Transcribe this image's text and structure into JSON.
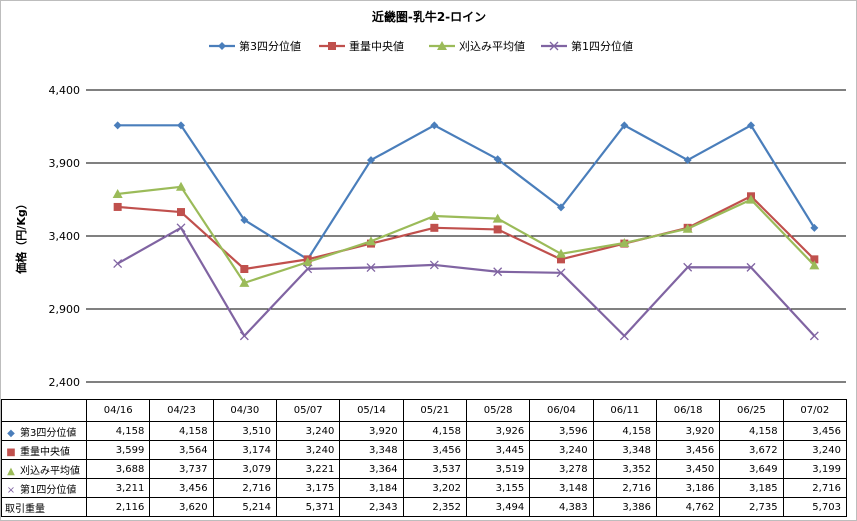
{
  "chart_data": {
    "type": "line",
    "title": "近畿圏-乳牛2-ロイン",
    "ylabel": "価格（円/Kg）",
    "xlabel": "",
    "ylim": [
      2400,
      4400
    ],
    "yticks": [
      2400,
      2900,
      3400,
      3900,
      4400
    ],
    "ytick_labels": [
      "2,400",
      "2,900",
      "3,400",
      "3,900",
      "4,400"
    ],
    "grid": true,
    "legend_position": "top",
    "categories": [
      "04/16",
      "04/23",
      "04/30",
      "05/07",
      "05/14",
      "05/21",
      "05/28",
      "06/04",
      "06/11",
      "06/18",
      "06/25",
      "07/02"
    ],
    "series": [
      {
        "name": "第3四分位値",
        "color": "#4a7ebb",
        "marker": "diamond",
        "marker_glyph": "◆",
        "values": [
          4158,
          4158,
          3510,
          3240,
          3920,
          4158,
          3926,
          3596,
          4158,
          3920,
          4158,
          3456
        ],
        "labels": [
          "4,158",
          "4,158",
          "3,510",
          "3,240",
          "3,920",
          "4,158",
          "3,926",
          "3,596",
          "4,158",
          "3,920",
          "4,158",
          "3,456"
        ]
      },
      {
        "name": "重量中央値",
        "color": "#c0504d",
        "marker": "square",
        "marker_glyph": "■",
        "values": [
          3599,
          3564,
          3174,
          3240,
          3348,
          3456,
          3445,
          3240,
          3348,
          3456,
          3672,
          3240
        ],
        "labels": [
          "3,599",
          "3,564",
          "3,174",
          "3,240",
          "3,348",
          "3,456",
          "3,445",
          "3,240",
          "3,348",
          "3,456",
          "3,672",
          "3,240"
        ]
      },
      {
        "name": "刈込み平均値",
        "color": "#9bbb59",
        "marker": "triangle",
        "marker_glyph": "▲",
        "values": [
          3688,
          3737,
          3079,
          3221,
          3364,
          3537,
          3519,
          3278,
          3352,
          3450,
          3649,
          3199
        ],
        "labels": [
          "3,688",
          "3,737",
          "3,079",
          "3,221",
          "3,364",
          "3,537",
          "3,519",
          "3,278",
          "3,352",
          "3,450",
          "3,649",
          "3,199"
        ]
      },
      {
        "name": "第1四分位値",
        "color": "#8064a2",
        "marker": "x",
        "marker_glyph": "×",
        "values": [
          3211,
          3456,
          2716,
          3175,
          3184,
          3202,
          3155,
          3148,
          2716,
          3186,
          3185,
          2716
        ],
        "labels": [
          "3,211",
          "3,456",
          "2,716",
          "3,175",
          "3,184",
          "3,202",
          "3,155",
          "3,148",
          "2,716",
          "3,186",
          "3,185",
          "2,716"
        ]
      }
    ],
    "table_extra_rows": [
      {
        "name": "取引重量",
        "values": [
          2116,
          3620,
          5214,
          5371,
          2343,
          2352,
          3494,
          4383,
          3386,
          4762,
          2735,
          5703
        ],
        "labels": [
          "2,116",
          "3,620",
          "5,214",
          "5,371",
          "2,343",
          "2,352",
          "3,494",
          "4,383",
          "3,386",
          "4,762",
          "2,735",
          "5,703"
        ]
      }
    ]
  }
}
